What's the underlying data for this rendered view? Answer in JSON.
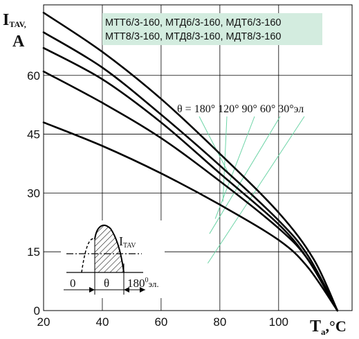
{
  "chart_data": {
    "type": "line",
    "xlim": [
      20,
      125
    ],
    "ylim": [
      0,
      78
    ],
    "x_ticks": [
      "20",
      "40",
      "60",
      "80",
      "100"
    ],
    "y_ticks": [
      "0",
      "15",
      "30",
      "45",
      "60"
    ],
    "ylabel_main": "I",
    "ylabel_sub": "TAV,",
    "ylabel_unit": "A",
    "xlabel_main": "T",
    "xlabel_sub": "a",
    "xlabel_unit": ",°C",
    "grid": true,
    "legend_box": {
      "line1": "МТТ6/3-160, МТД6/3-160, МДТ6/3-160",
      "line2": "МТТ8/3-160, МТД8/3-160, МДТ8/3-160",
      "background": "#d3ecdf"
    },
    "angle_label": "θ = 180° 120° 90° 60° 30°эл",
    "series_color": "#000000",
    "leader_color": "#6cd4a6",
    "series": [
      {
        "conduction_angle": "180°",
        "x": [
          20,
          40,
          60,
          80,
          100,
          112,
          120
        ],
        "y": [
          76,
          66,
          54,
          40,
          25,
          13,
          0
        ]
      },
      {
        "conduction_angle": "120°",
        "x": [
          20,
          40,
          60,
          80,
          100,
          110,
          120
        ],
        "y": [
          71,
          62,
          50,
          37,
          23,
          14,
          0
        ]
      },
      {
        "conduction_angle": "90°",
        "x": [
          20,
          40,
          60,
          80,
          100,
          110,
          120
        ],
        "y": [
          67,
          59,
          48,
          35,
          22,
          13,
          0
        ]
      },
      {
        "conduction_angle": "60°",
        "x": [
          20,
          40,
          60,
          80,
          100,
          110,
          120
        ],
        "y": [
          61,
          53,
          44,
          33,
          21,
          13,
          0
        ]
      },
      {
        "conduction_angle": "30°",
        "x": [
          20,
          40,
          60,
          80,
          100,
          110,
          120
        ],
        "y": [
          48,
          42,
          35,
          27,
          18,
          11,
          0
        ]
      }
    ],
    "inset": {
      "current_main": "I",
      "current_sub": "TAV",
      "zero_label": "0",
      "theta_label": "θ",
      "full_label": "180",
      "full_label_sup": "0",
      "full_label_unit": "эл."
    }
  }
}
